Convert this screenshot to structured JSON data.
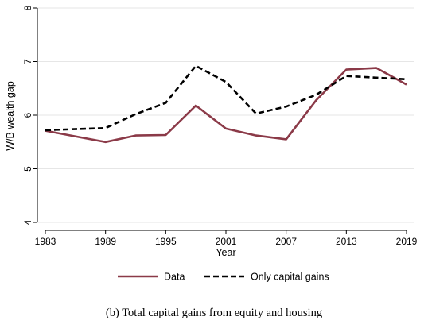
{
  "caption": "(b) Total capital gains from equity and housing",
  "chart_data": {
    "type": "line",
    "title": "",
    "xlabel": "Year",
    "ylabel": "W/B wealth gap",
    "xlim": [
      1983,
      2019
    ],
    "ylim": [
      4,
      8
    ],
    "x_ticks": [
      1983,
      1989,
      1995,
      2001,
      2007,
      2013,
      2019
    ],
    "y_ticks": [
      4,
      5,
      6,
      7,
      8
    ],
    "grid": true,
    "legend_position": "bottom",
    "series": [
      {
        "name": "Data",
        "color": "#8B3A48",
        "style": "solid",
        "x": [
          1983,
          1989,
          1992,
          1995,
          1998,
          2001,
          2004,
          2007,
          2010,
          2013,
          2016,
          2019
        ],
        "y": [
          5.71,
          5.5,
          5.62,
          5.63,
          6.18,
          5.75,
          5.62,
          5.55,
          6.28,
          6.85,
          6.88,
          6.57
        ]
      },
      {
        "name": "Only capital gains",
        "color": "#000000",
        "style": "dashed",
        "x": [
          1983,
          1989,
          1992,
          1995,
          1998,
          2001,
          2004,
          2007,
          2010,
          2013,
          2016,
          2019
        ],
        "y": [
          5.72,
          5.76,
          6.02,
          6.23,
          6.92,
          6.62,
          6.03,
          6.16,
          6.38,
          6.73,
          6.7,
          6.67
        ]
      }
    ]
  }
}
